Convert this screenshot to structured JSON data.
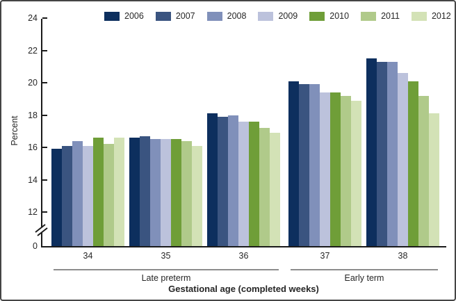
{
  "chart_data": {
    "type": "bar",
    "title": "",
    "xlabel": "Gestational age (completed weeks)",
    "ylabel": "Percent",
    "categories": [
      "34",
      "35",
      "36",
      "37",
      "38"
    ],
    "series": [
      {
        "name": "2006",
        "color": "#0d2f5e",
        "values": [
          15.9,
          16.6,
          18.1,
          20.1,
          21.5
        ]
      },
      {
        "name": "2007",
        "color": "#3a5480",
        "values": [
          16.1,
          16.7,
          17.9,
          19.9,
          21.3
        ]
      },
      {
        "name": "2008",
        "color": "#8090ba",
        "values": [
          16.4,
          16.5,
          18.0,
          19.9,
          21.3
        ]
      },
      {
        "name": "2009",
        "color": "#bcc2dc",
        "values": [
          16.1,
          16.5,
          17.6,
          19.4,
          20.6
        ]
      },
      {
        "name": "2010",
        "color": "#6f9e38",
        "values": [
          16.6,
          16.5,
          17.6,
          19.4,
          20.1
        ]
      },
      {
        "name": "2011",
        "color": "#b0ca8a",
        "values": [
          16.2,
          16.4,
          17.2,
          19.2,
          19.2
        ]
      },
      {
        "name": "2012",
        "color": "#d3e2b6",
        "values": [
          16.6,
          16.1,
          16.9,
          18.9,
          18.1
        ]
      }
    ],
    "group_sections": [
      {
        "label": "Late preterm",
        "category_span": [
          0,
          2
        ]
      },
      {
        "label": "Early term",
        "category_span": [
          3,
          4
        ]
      }
    ],
    "y_axis": {
      "label": "Percent",
      "ticks": [
        24,
        22,
        20,
        18,
        16,
        14,
        12,
        0
      ],
      "ylim": [
        0,
        24
      ],
      "axis_break_between": [
        0,
        12
      ]
    },
    "legend_position": "top",
    "grid": "off"
  }
}
